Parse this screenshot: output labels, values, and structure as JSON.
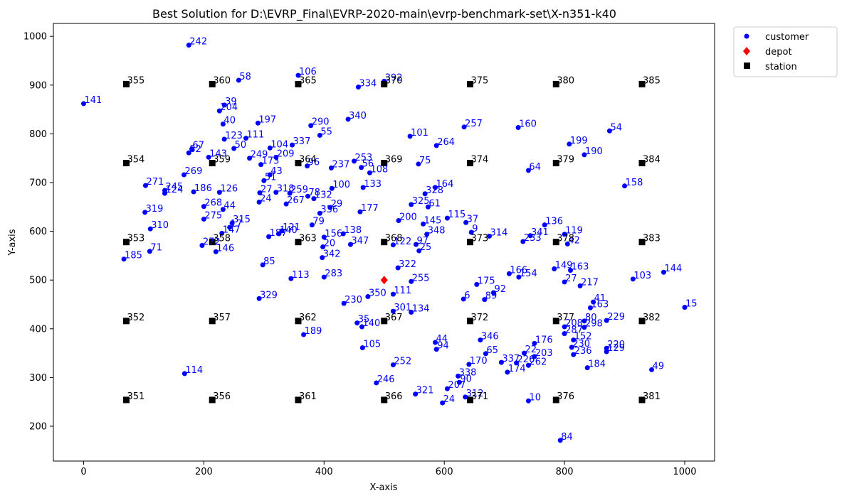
{
  "chart_data": {
    "type": "scatter",
    "title": "Best Solution for D:\\EVRP_Final\\EVRP-2020-main\\evrp-benchmark-set\\X-n351-k40",
    "xlabel": "X-axis",
    "ylabel": "Y-axis",
    "xlim": [
      -75,
      1050
    ],
    "ylim": [
      130,
      1030
    ],
    "xticks": [
      0,
      200,
      400,
      600,
      800,
      1000
    ],
    "yticks": [
      200,
      300,
      400,
      500,
      600,
      700,
      800,
      900,
      1000
    ],
    "legend": {
      "position": "outside-top-right",
      "entries": [
        "customer",
        "depot",
        "station"
      ]
    },
    "colors": {
      "customer": "#0000ff",
      "depot": "#ff0000",
      "station": "#000000"
    },
    "depot": {
      "x": 500,
      "y": 500
    },
    "stations": [
      {
        "id": "351",
        "x": 71,
        "y": 254
      },
      {
        "id": "352",
        "x": 71,
        "y": 416
      },
      {
        "id": "353",
        "x": 71,
        "y": 578
      },
      {
        "id": "354",
        "x": 71,
        "y": 740
      },
      {
        "id": "355",
        "x": 71,
        "y": 902
      },
      {
        "id": "356",
        "x": 214,
        "y": 254
      },
      {
        "id": "357",
        "x": 214,
        "y": 416
      },
      {
        "id": "358",
        "x": 214,
        "y": 578
      },
      {
        "id": "359",
        "x": 214,
        "y": 740
      },
      {
        "id": "360",
        "x": 214,
        "y": 902
      },
      {
        "id": "361",
        "x": 357,
        "y": 254
      },
      {
        "id": "362",
        "x": 357,
        "y": 416
      },
      {
        "id": "363",
        "x": 357,
        "y": 578
      },
      {
        "id": "364",
        "x": 357,
        "y": 740
      },
      {
        "id": "365",
        "x": 357,
        "y": 902
      },
      {
        "id": "366",
        "x": 500,
        "y": 254
      },
      {
        "id": "367",
        "x": 500,
        "y": 416
      },
      {
        "id": "368",
        "x": 500,
        "y": 578
      },
      {
        "id": "369",
        "x": 500,
        "y": 740
      },
      {
        "id": "370",
        "x": 500,
        "y": 902
      },
      {
        "id": "371",
        "x": 643,
        "y": 254
      },
      {
        "id": "372",
        "x": 643,
        "y": 416
      },
      {
        "id": "373",
        "x": 643,
        "y": 578
      },
      {
        "id": "374",
        "x": 643,
        "y": 740
      },
      {
        "id": "375",
        "x": 643,
        "y": 902
      },
      {
        "id": "376",
        "x": 786,
        "y": 254
      },
      {
        "id": "377",
        "x": 786,
        "y": 416
      },
      {
        "id": "378",
        "x": 786,
        "y": 578
      },
      {
        "id": "379",
        "x": 786,
        "y": 740
      },
      {
        "id": "380",
        "x": 786,
        "y": 902
      },
      {
        "id": "381",
        "x": 929,
        "y": 254
      },
      {
        "id": "382",
        "x": 929,
        "y": 416
      },
      {
        "id": "383",
        "x": 929,
        "y": 578
      },
      {
        "id": "384",
        "x": 929,
        "y": 740
      },
      {
        "id": "385",
        "x": 929,
        "y": 902
      }
    ],
    "customers": [
      {
        "id": "242",
        "x": 175,
        "y": 982
      },
      {
        "id": "141",
        "x": 0,
        "y": 862
      },
      {
        "id": "58",
        "x": 258,
        "y": 910
      },
      {
        "id": "106",
        "x": 357,
        "y": 920
      },
      {
        "id": "334",
        "x": 457,
        "y": 896
      },
      {
        "id": "392",
        "x": 500,
        "y": 908
      },
      {
        "id": "39",
        "x": 234,
        "y": 859
      },
      {
        "id": "204",
        "x": 226,
        "y": 847
      },
      {
        "id": "40",
        "x": 232,
        "y": 820
      },
      {
        "id": "197",
        "x": 290,
        "y": 822
      },
      {
        "id": "290",
        "x": 378,
        "y": 817
      },
      {
        "id": "340",
        "x": 440,
        "y": 830
      },
      {
        "id": "257",
        "x": 633,
        "y": 814
      },
      {
        "id": "160",
        "x": 723,
        "y": 813
      },
      {
        "id": "54",
        "x": 875,
        "y": 806
      },
      {
        "id": "123",
        "x": 234,
        "y": 789
      },
      {
        "id": "111",
        "x": 270,
        "y": 791
      },
      {
        "id": "55",
        "x": 393,
        "y": 797
      },
      {
        "id": "101",
        "x": 543,
        "y": 795
      },
      {
        "id": "264",
        "x": 587,
        "y": 776
      },
      {
        "id": "199",
        "x": 808,
        "y": 779
      },
      {
        "id": "190",
        "x": 833,
        "y": 757
      },
      {
        "id": "67",
        "x": 180,
        "y": 769
      },
      {
        "id": "82",
        "x": 175,
        "y": 761
      },
      {
        "id": "50",
        "x": 250,
        "y": 770
      },
      {
        "id": "104",
        "x": 310,
        "y": 771
      },
      {
        "id": "337",
        "x": 347,
        "y": 777
      },
      {
        "id": "249",
        "x": 276,
        "y": 750
      },
      {
        "id": "209",
        "x": 320,
        "y": 752
      },
      {
        "id": "143",
        "x": 208,
        "y": 752
      },
      {
        "id": "253",
        "x": 450,
        "y": 744
      },
      {
        "id": "75",
        "x": 557,
        "y": 738
      },
      {
        "id": "64",
        "x": 740,
        "y": 725
      },
      {
        "id": "173",
        "x": 295,
        "y": 737
      },
      {
        "id": "96",
        "x": 372,
        "y": 734
      },
      {
        "id": "237",
        "x": 412,
        "y": 730
      },
      {
        "id": "56",
        "x": 462,
        "y": 731
      },
      {
        "id": "108",
        "x": 476,
        "y": 720
      },
      {
        "id": "269",
        "x": 167,
        "y": 716
      },
      {
        "id": "43",
        "x": 310,
        "y": 716
      },
      {
        "id": "158",
        "x": 900,
        "y": 693
      },
      {
        "id": "271",
        "x": 103,
        "y": 694
      },
      {
        "id": "245",
        "x": 135,
        "y": 684
      },
      {
        "id": "124",
        "x": 135,
        "y": 678
      },
      {
        "id": "186",
        "x": 183,
        "y": 681
      },
      {
        "id": "126",
        "x": 226,
        "y": 680
      },
      {
        "id": "51",
        "x": 300,
        "y": 704
      },
      {
        "id": "164",
        "x": 585,
        "y": 690
      },
      {
        "id": "133",
        "x": 465,
        "y": 690
      },
      {
        "id": "100",
        "x": 413,
        "y": 688
      },
      {
        "id": "328",
        "x": 568,
        "y": 677
      },
      {
        "id": "318",
        "x": 320,
        "y": 680
      },
      {
        "id": "259",
        "x": 343,
        "y": 678
      },
      {
        "id": "78",
        "x": 373,
        "y": 672
      },
      {
        "id": "132",
        "x": 383,
        "y": 667
      },
      {
        "id": "27",
        "x": 293,
        "y": 679
      },
      {
        "id": "24",
        "x": 292,
        "y": 660
      },
      {
        "id": "267",
        "x": 337,
        "y": 656
      },
      {
        "id": "325",
        "x": 545,
        "y": 655
      },
      {
        "id": "61",
        "x": 573,
        "y": 650
      },
      {
        "id": "268",
        "x": 200,
        "y": 651
      },
      {
        "id": "44",
        "x": 232,
        "y": 645
      },
      {
        "id": "29",
        "x": 410,
        "y": 649
      },
      {
        "id": "336",
        "x": 393,
        "y": 637
      },
      {
        "id": "177",
        "x": 460,
        "y": 640
      },
      {
        "id": "319",
        "x": 102,
        "y": 639
      },
      {
        "id": "275",
        "x": 200,
        "y": 625
      },
      {
        "id": "145",
        "x": 565,
        "y": 615
      },
      {
        "id": "115",
        "x": 605,
        "y": 627
      },
      {
        "id": "200",
        "x": 524,
        "y": 622
      },
      {
        "id": "37",
        "x": 636,
        "y": 618
      },
      {
        "id": "310",
        "x": 111,
        "y": 605
      },
      {
        "id": "315",
        "x": 247,
        "y": 617
      },
      {
        "id": "17",
        "x": 243,
        "y": 608
      },
      {
        "id": "79",
        "x": 380,
        "y": 613
      },
      {
        "id": "121",
        "x": 330,
        "y": 601
      },
      {
        "id": "140",
        "x": 325,
        "y": 595
      },
      {
        "id": "147",
        "x": 230,
        "y": 596
      },
      {
        "id": "187",
        "x": 308,
        "y": 589
      },
      {
        "id": "138",
        "x": 432,
        "y": 595
      },
      {
        "id": "156",
        "x": 400,
        "y": 588
      },
      {
        "id": "136",
        "x": 767,
        "y": 613
      },
      {
        "id": "119",
        "x": 800,
        "y": 594
      },
      {
        "id": "314",
        "x": 675,
        "y": 590
      },
      {
        "id": "341",
        "x": 743,
        "y": 591
      },
      {
        "id": "233",
        "x": 731,
        "y": 579
      },
      {
        "id": "42",
        "x": 805,
        "y": 574
      },
      {
        "id": "9",
        "x": 645,
        "y": 598
      },
      {
        "id": "348",
        "x": 571,
        "y": 594
      },
      {
        "id": "347",
        "x": 444,
        "y": 573
      },
      {
        "id": "20",
        "x": 398,
        "y": 568
      },
      {
        "id": "146",
        "x": 220,
        "y": 558
      },
      {
        "id": "272",
        "x": 197,
        "y": 571
      },
      {
        "id": "185",
        "x": 67,
        "y": 543
      },
      {
        "id": "71",
        "x": 110,
        "y": 559
      },
      {
        "id": "342",
        "x": 397,
        "y": 546
      },
      {
        "id": "85",
        "x": 298,
        "y": 531
      },
      {
        "id": "122",
        "x": 515,
        "y": 572
      },
      {
        "id": "97",
        "x": 553,
        "y": 573
      },
      {
        "id": "25",
        "x": 558,
        "y": 560
      },
      {
        "id": "322",
        "x": 523,
        "y": 525
      },
      {
        "id": "149",
        "x": 783,
        "y": 523
      },
      {
        "id": "163",
        "x": 810,
        "y": 520
      },
      {
        "id": "144",
        "x": 965,
        "y": 516
      },
      {
        "id": "103",
        "x": 914,
        "y": 502
      },
      {
        "id": "217",
        "x": 826,
        "y": 488
      },
      {
        "id": "113",
        "x": 345,
        "y": 503
      },
      {
        "id": "283",
        "x": 400,
        "y": 506
      },
      {
        "id": "255",
        "x": 545,
        "y": 497
      },
      {
        "id": "166",
        "x": 708,
        "y": 513
      },
      {
        "id": "154",
        "x": 724,
        "y": 506
      },
      {
        "id": "175",
        "x": 654,
        "y": 491
      },
      {
        "id": "27b",
        "x": 800,
        "y": 496
      },
      {
        "id": "329",
        "x": 292,
        "y": 462
      },
      {
        "id": "350",
        "x": 473,
        "y": 466
      },
      {
        "id": "111b",
        "x": 515,
        "y": 471
      },
      {
        "id": "6",
        "x": 632,
        "y": 461
      },
      {
        "id": "89",
        "x": 667,
        "y": 460
      },
      {
        "id": "92",
        "x": 682,
        "y": 474
      },
      {
        "id": "230",
        "x": 433,
        "y": 452
      },
      {
        "id": "15",
        "x": 1000,
        "y": 444
      },
      {
        "id": "163b",
        "x": 843,
        "y": 443
      },
      {
        "id": "41",
        "x": 848,
        "y": 455
      },
      {
        "id": "301",
        "x": 515,
        "y": 436
      },
      {
        "id": "134",
        "x": 545,
        "y": 434
      },
      {
        "id": "35",
        "x": 455,
        "y": 412
      },
      {
        "id": "140b",
        "x": 463,
        "y": 404
      },
      {
        "id": "189",
        "x": 366,
        "y": 388
      },
      {
        "id": "229",
        "x": 870,
        "y": 417
      },
      {
        "id": "80",
        "x": 833,
        "y": 416
      },
      {
        "id": "298",
        "x": 833,
        "y": 403
      },
      {
        "id": "208",
        "x": 800,
        "y": 404
      },
      {
        "id": "287",
        "x": 800,
        "y": 390
      },
      {
        "id": "346",
        "x": 660,
        "y": 377
      },
      {
        "id": "176",
        "x": 750,
        "y": 370
      },
      {
        "id": "152",
        "x": 815,
        "y": 377
      },
      {
        "id": "44b",
        "x": 585,
        "y": 372
      },
      {
        "id": "94",
        "x": 587,
        "y": 358
      },
      {
        "id": "105",
        "x": 464,
        "y": 361
      },
      {
        "id": "230b",
        "x": 812,
        "y": 362
      },
      {
        "id": "236",
        "x": 815,
        "y": 347
      },
      {
        "id": "220",
        "x": 870,
        "y": 360
      },
      {
        "id": "129",
        "x": 870,
        "y": 353
      },
      {
        "id": "65",
        "x": 669,
        "y": 349
      },
      {
        "id": "203",
        "x": 750,
        "y": 343
      },
      {
        "id": "22",
        "x": 733,
        "y": 350
      },
      {
        "id": "170",
        "x": 641,
        "y": 327
      },
      {
        "id": "337b",
        "x": 695,
        "y": 331
      },
      {
        "id": "226",
        "x": 720,
        "y": 330
      },
      {
        "id": "262",
        "x": 740,
        "y": 325
      },
      {
        "id": "184",
        "x": 838,
        "y": 320
      },
      {
        "id": "49",
        "x": 945,
        "y": 316
      },
      {
        "id": "252",
        "x": 515,
        "y": 326
      },
      {
        "id": "114",
        "x": 168,
        "y": 308
      },
      {
        "id": "174",
        "x": 705,
        "y": 311
      },
      {
        "id": "338",
        "x": 623,
        "y": 303
      },
      {
        "id": "246",
        "x": 487,
        "y": 289
      },
      {
        "id": "90",
        "x": 625,
        "y": 290
      },
      {
        "id": "207",
        "x": 605,
        "y": 277
      },
      {
        "id": "321",
        "x": 552,
        "y": 266
      },
      {
        "id": "312",
        "x": 635,
        "y": 260
      },
      {
        "id": "24b",
        "x": 597,
        "y": 248
      },
      {
        "id": "10",
        "x": 740,
        "y": 252
      },
      {
        "id": "84",
        "x": 793,
        "y": 171
      }
    ]
  }
}
